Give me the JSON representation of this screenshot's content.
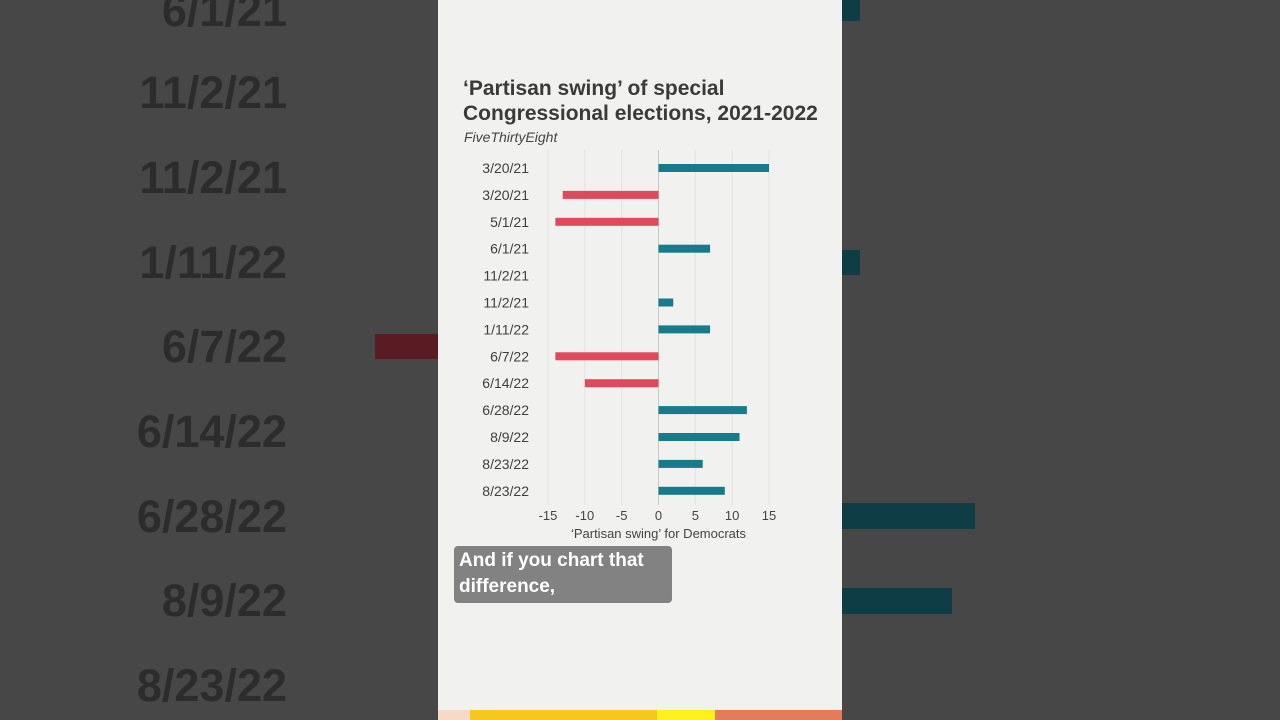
{
  "video": {
    "title": "‘Partisan swing’ of special Congressional elections, 2021-2022",
    "source": "FiveThirtyEight",
    "caption_line1": "And if you chart that",
    "caption_line2": "difference,"
  },
  "chart_data": {
    "type": "bar",
    "orientation": "horizontal",
    "title": "‘Partisan swing’ of special Congressional elections, 2021-2022",
    "subtitle": "FiveThirtyEight",
    "xlabel": "‘Partisan swing’ for Democrats",
    "ylabel": "",
    "xlim": [
      -15,
      15
    ],
    "xticks": [
      -15,
      -10,
      -5,
      0,
      5,
      10,
      15
    ],
    "grid": true,
    "categories": [
      "3/20/21",
      "3/20/21",
      "5/1/21",
      "6/1/21",
      "11/2/21",
      "11/2/21",
      "1/11/22",
      "6/7/22",
      "6/14/22",
      "6/28/22",
      "8/9/22",
      "8/23/22",
      "8/23/22"
    ],
    "values": [
      15,
      -13,
      -14,
      7,
      0,
      2,
      7,
      -14,
      -10,
      12,
      11,
      6,
      9
    ],
    "colors": {
      "positive": "#177b8c",
      "negative": "#e0485b"
    }
  },
  "backdrop": {
    "labels": [
      "6/1/21",
      "11/2/21",
      "11/2/21",
      "1/11/22",
      "6/7/22",
      "6/14/22",
      "6/28/22",
      "8/9/22",
      "8/23/22"
    ]
  },
  "colors": {
    "strip": [
      "#f7d9c4",
      "#f5c81a",
      "#fdf21e",
      "#e57b58"
    ]
  }
}
